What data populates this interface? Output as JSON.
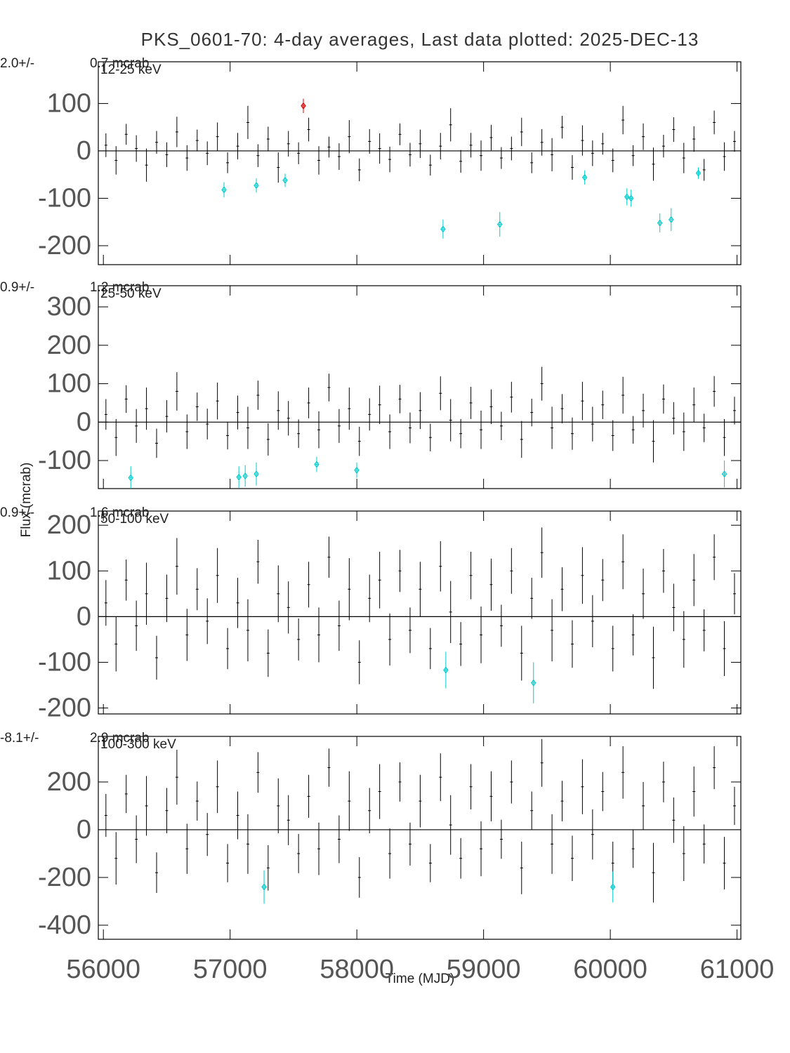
{
  "chart_data": [
    {
      "type": "errorbar",
      "title": "PKS_0601-70:  4-day averages,  Last data plotted: 2025-DEC-13",
      "band_label": "12-25 keV",
      "mean_label": "2.0+/-",
      "mean_error_label": "0.7 mcrab",
      "xlim": [
        55960,
        61030
      ],
      "ylim": [
        -240,
        188
      ],
      "yticks": [
        -200,
        -100,
        0,
        100
      ],
      "series": [
        {
          "color": "#000000",
          "x": [
            56020,
            56100,
            56180,
            56260,
            56340,
            56420,
            56500,
            56580,
            56660,
            56740,
            56820,
            56900,
            56980,
            57060,
            57140,
            57220,
            57300,
            57380,
            57460,
            57540,
            57620,
            57700,
            57780,
            57860,
            57940,
            58020,
            58100,
            58180,
            58260,
            58340,
            58420,
            58500,
            58580,
            58660,
            58740,
            58820,
            58900,
            58980,
            59060,
            59140,
            59220,
            59300,
            59380,
            59460,
            59540,
            59620,
            59700,
            59780,
            59860,
            59940,
            60020,
            60100,
            60180,
            60260,
            60340,
            60420,
            60500,
            60580,
            60660,
            60740,
            60820,
            60900,
            60980
          ],
          "values": [
            12,
            -20,
            35,
            5,
            -30,
            18,
            -8,
            40,
            -15,
            22,
            -5,
            30,
            -25,
            10,
            60,
            -10,
            25,
            -35,
            15,
            -5,
            45,
            -20,
            8,
            -12,
            30,
            -40,
            20,
            5,
            -18,
            35,
            -8,
            15,
            -30,
            10,
            55,
            -22,
            12,
            -10,
            28,
            -15,
            5,
            40,
            -25,
            18,
            -8,
            50,
            -35,
            22,
            -5,
            15,
            -20,
            65,
            -10,
            30,
            -28,
            10,
            45,
            -15,
            25,
            -40,
            60,
            -12,
            20
          ],
          "errors": [
            25,
            30,
            22,
            28,
            35,
            24,
            26,
            32,
            27,
            23,
            25,
            30,
            22,
            28,
            35,
            24,
            26,
            32,
            27,
            23,
            25,
            30,
            22,
            28,
            35,
            24,
            26,
            32,
            27,
            23,
            25,
            30,
            22,
            28,
            35,
            24,
            26,
            32,
            27,
            23,
            25,
            30,
            22,
            28,
            35,
            24,
            26,
            32,
            27,
            23,
            25,
            30,
            22,
            28,
            35,
            24,
            26,
            32,
            27,
            23,
            25,
            30,
            22
          ]
        },
        {
          "color": "#00cccc",
          "marker": "diamond",
          "x": [
            56952,
            57207,
            57434,
            58680,
            59128,
            59798,
            60131,
            60164,
            60391,
            60480,
            60695
          ],
          "values": [
            -82,
            -73,
            -62,
            -165,
            -155,
            -56,
            -97,
            -100,
            -152,
            -145,
            -47
          ],
          "errors": [
            16,
            15,
            14,
            20,
            26,
            15,
            18,
            18,
            20,
            24,
            12
          ]
        },
        {
          "color": "#dd0000",
          "marker": "diamond",
          "x": [
            57578
          ],
          "values": [
            95
          ],
          "errors": [
            15
          ]
        }
      ]
    },
    {
      "type": "errorbar",
      "band_label": "25-50 keV",
      "mean_label": "0.9+/-",
      "mean_error_label": "1.2 mcrab",
      "xlim": [
        55960,
        61030
      ],
      "ylim": [
        -173,
        355
      ],
      "yticks": [
        -100,
        0,
        100,
        200,
        300
      ],
      "series": [
        {
          "color": "#000000",
          "x": [
            56020,
            56100,
            56180,
            56260,
            56340,
            56420,
            56500,
            56580,
            56660,
            56740,
            56820,
            56900,
            56980,
            57060,
            57140,
            57220,
            57300,
            57380,
            57460,
            57540,
            57620,
            57700,
            57780,
            57860,
            57940,
            58020,
            58100,
            58180,
            58260,
            58340,
            58420,
            58500,
            58580,
            58660,
            58740,
            58820,
            58900,
            58980,
            59060,
            59140,
            59220,
            59300,
            59380,
            59460,
            59540,
            59620,
            59700,
            59780,
            59860,
            59940,
            60020,
            60100,
            60180,
            60260,
            60340,
            60420,
            60500,
            60580,
            60660,
            60740,
            60820,
            60900,
            60980
          ],
          "values": [
            20,
            -40,
            60,
            -10,
            35,
            -55,
            15,
            80,
            -25,
            40,
            -5,
            55,
            -35,
            25,
            -15,
            70,
            -45,
            30,
            10,
            -30,
            50,
            -20,
            90,
            -10,
            35,
            -50,
            20,
            45,
            -25,
            60,
            -15,
            30,
            -40,
            75,
            5,
            -30,
            50,
            -20,
            40,
            -10,
            65,
            -45,
            25,
            100,
            -15,
            35,
            -30,
            55,
            -5,
            45,
            -35,
            70,
            -20,
            30,
            -50,
            60,
            10,
            -25,
            45,
            -15,
            80,
            -40,
            30
          ],
          "errors": [
            40,
            48,
            36,
            44,
            55,
            38,
            42,
            50,
            45,
            37,
            40,
            48,
            36,
            44,
            55,
            38,
            42,
            50,
            45,
            37,
            40,
            48,
            36,
            44,
            55,
            38,
            42,
            50,
            45,
            37,
            40,
            48,
            36,
            44,
            55,
            38,
            42,
            50,
            45,
            37,
            40,
            48,
            36,
            44,
            55,
            38,
            42,
            50,
            45,
            37,
            40,
            48,
            36,
            44,
            55,
            38,
            42,
            50,
            45,
            37,
            40,
            48,
            36
          ]
        },
        {
          "color": "#00cccc",
          "marker": "diamond",
          "x": [
            56216,
            57069,
            57119,
            57207,
            57683,
            57999,
            60900
          ],
          "values": [
            -145,
            -143,
            -140,
            -135,
            -110,
            -125,
            -135
          ],
          "errors": [
            30,
            28,
            28,
            30,
            20,
            20,
            35
          ]
        }
      ]
    },
    {
      "type": "errorbar",
      "ylabel": "Flux (mcrab)",
      "band_label": "50-100 keV",
      "mean_label": "0.9+/-",
      "mean_error_label": "1.6 mcrab",
      "xlim": [
        55960,
        61030
      ],
      "ylim": [
        -213,
        231
      ],
      "yticks": [
        -200,
        -100,
        0,
        100,
        200
      ],
      "series": [
        {
          "color": "#000000",
          "x": [
            56020,
            56100,
            56180,
            56260,
            56340,
            56420,
            56500,
            56580,
            56660,
            56740,
            56820,
            56900,
            56980,
            57060,
            57140,
            57220,
            57300,
            57380,
            57460,
            57540,
            57620,
            57700,
            57780,
            57860,
            57940,
            58020,
            58100,
            58180,
            58260,
            58340,
            58420,
            58500,
            58580,
            58660,
            58740,
            58820,
            58900,
            58980,
            59060,
            59140,
            59220,
            59300,
            59380,
            59460,
            59540,
            59620,
            59700,
            59780,
            59860,
            59940,
            60020,
            60100,
            60180,
            60260,
            60340,
            60420,
            60500,
            60580,
            60660,
            60740,
            60820,
            60900,
            60980
          ],
          "values": [
            30,
            -60,
            80,
            -20,
            50,
            -90,
            40,
            110,
            -40,
            60,
            -10,
            90,
            -70,
            30,
            -30,
            120,
            -80,
            50,
            20,
            -50,
            70,
            -40,
            130,
            -20,
            60,
            -100,
            40,
            80,
            -50,
            100,
            -30,
            60,
            -70,
            110,
            10,
            -60,
            90,
            -40,
            70,
            -20,
            100,
            -80,
            40,
            140,
            -30,
            60,
            -60,
            90,
            -10,
            80,
            -70,
            120,
            -40,
            50,
            -90,
            100,
            20,
            -50,
            80,
            -30,
            130,
            -70,
            50
          ],
          "errors": [
            50,
            60,
            45,
            55,
            68,
            48,
            52,
            62,
            57,
            46,
            50,
            60,
            45,
            55,
            68,
            48,
            52,
            62,
            57,
            46,
            50,
            60,
            45,
            55,
            68,
            48,
            52,
            62,
            57,
            46,
            50,
            60,
            45,
            55,
            68,
            48,
            52,
            62,
            57,
            46,
            50,
            60,
            45,
            55,
            68,
            48,
            52,
            62,
            57,
            46,
            50,
            60,
            45,
            55,
            68,
            48,
            52,
            62,
            57,
            46,
            50,
            60,
            45
          ]
        },
        {
          "color": "#00cccc",
          "marker": "diamond",
          "x": [
            58702,
            59394
          ],
          "values": [
            -117,
            -145
          ],
          "errors": [
            40,
            45
          ]
        }
      ]
    },
    {
      "type": "errorbar",
      "xlabel": "Time (MJD)",
      "band_label": "100-300 keV",
      "mean_label": "-8.1+/-",
      "mean_error_label": "2.9 mcrab",
      "xlim": [
        55960,
        61030
      ],
      "ylim": [
        -459,
        391
      ],
      "yticks": [
        -400,
        -200,
        0,
        200
      ],
      "xticks": [
        56000,
        57000,
        58000,
        59000,
        60000,
        61000
      ],
      "series": [
        {
          "color": "#000000",
          "x": [
            56020,
            56100,
            56180,
            56260,
            56340,
            56420,
            56500,
            56580,
            56660,
            56740,
            56820,
            56900,
            56980,
            57060,
            57140,
            57220,
            57300,
            57380,
            57460,
            57540,
            57620,
            57700,
            57780,
            57860,
            57940,
            58020,
            58100,
            58180,
            58260,
            58340,
            58420,
            58500,
            58580,
            58660,
            58740,
            58820,
            58900,
            58980,
            59060,
            59140,
            59220,
            59300,
            59380,
            59460,
            59540,
            59620,
            59700,
            59780,
            59860,
            59940,
            60020,
            60100,
            60180,
            60260,
            60340,
            60420,
            60500,
            60580,
            60660,
            60740,
            60820,
            60900,
            60980
          ],
          "values": [
            60,
            -120,
            150,
            -40,
            100,
            -180,
            80,
            220,
            -80,
            120,
            -20,
            180,
            -140,
            60,
            -60,
            240,
            -160,
            100,
            40,
            -100,
            140,
            -80,
            260,
            -40,
            120,
            -200,
            80,
            160,
            -100,
            200,
            -60,
            120,
            -140,
            220,
            20,
            -120,
            180,
            -80,
            140,
            -40,
            200,
            -160,
            80,
            280,
            -60,
            120,
            -120,
            180,
            -20,
            160,
            -140,
            240,
            -80,
            100,
            -180,
            200,
            40,
            -100,
            160,
            -60,
            260,
            -140,
            100
          ],
          "errors": [
            90,
            110,
            80,
            100,
            125,
            85,
            95,
            115,
            105,
            82,
            90,
            110,
            80,
            100,
            125,
            85,
            95,
            115,
            105,
            82,
            90,
            110,
            80,
            100,
            125,
            85,
            95,
            115,
            105,
            82,
            90,
            110,
            80,
            100,
            125,
            85,
            95,
            115,
            105,
            82,
            90,
            110,
            80,
            100,
            125,
            85,
            95,
            115,
            105,
            82,
            90,
            110,
            80,
            100,
            125,
            85,
            95,
            115,
            105,
            82,
            90,
            110,
            80
          ]
        },
        {
          "color": "#00cccc",
          "marker": "diamond",
          "x": [
            57268,
            60020
          ],
          "values": [
            -240,
            -240
          ],
          "errors": [
            70,
            65
          ]
        }
      ]
    }
  ]
}
